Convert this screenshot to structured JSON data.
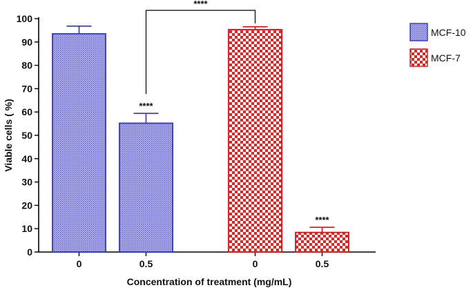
{
  "chart_data": {
    "type": "bar",
    "xlabel": "Concentration of treatment  (mg/mL)",
    "ylabel": "Viable cells ( %)",
    "ylim": [
      0,
      100
    ],
    "yticks": [
      0,
      10,
      20,
      30,
      40,
      50,
      60,
      70,
      80,
      90,
      100
    ],
    "categories": [
      "0",
      "0.5"
    ],
    "series": [
      {
        "name": "MCF-10",
        "values": [
          93.5,
          55.2
        ],
        "errors": [
          3.3,
          4.2
        ],
        "color": "#3333cc",
        "pattern": "dotted"
      },
      {
        "name": "MCF-7",
        "values": [
          95.3,
          8.4
        ],
        "errors": [
          1.2,
          2.2
        ],
        "color": "#dd1111",
        "pattern": "checkered"
      }
    ],
    "annotations": [
      {
        "text": "****",
        "series": 0,
        "category": 1
      },
      {
        "text": "****",
        "series": 1,
        "category": 1
      },
      {
        "text": "****",
        "type": "bracket",
        "from": {
          "series": 0,
          "category": 1
        },
        "to": {
          "series": 1,
          "category": 0
        }
      }
    ],
    "legend_position": "right"
  }
}
